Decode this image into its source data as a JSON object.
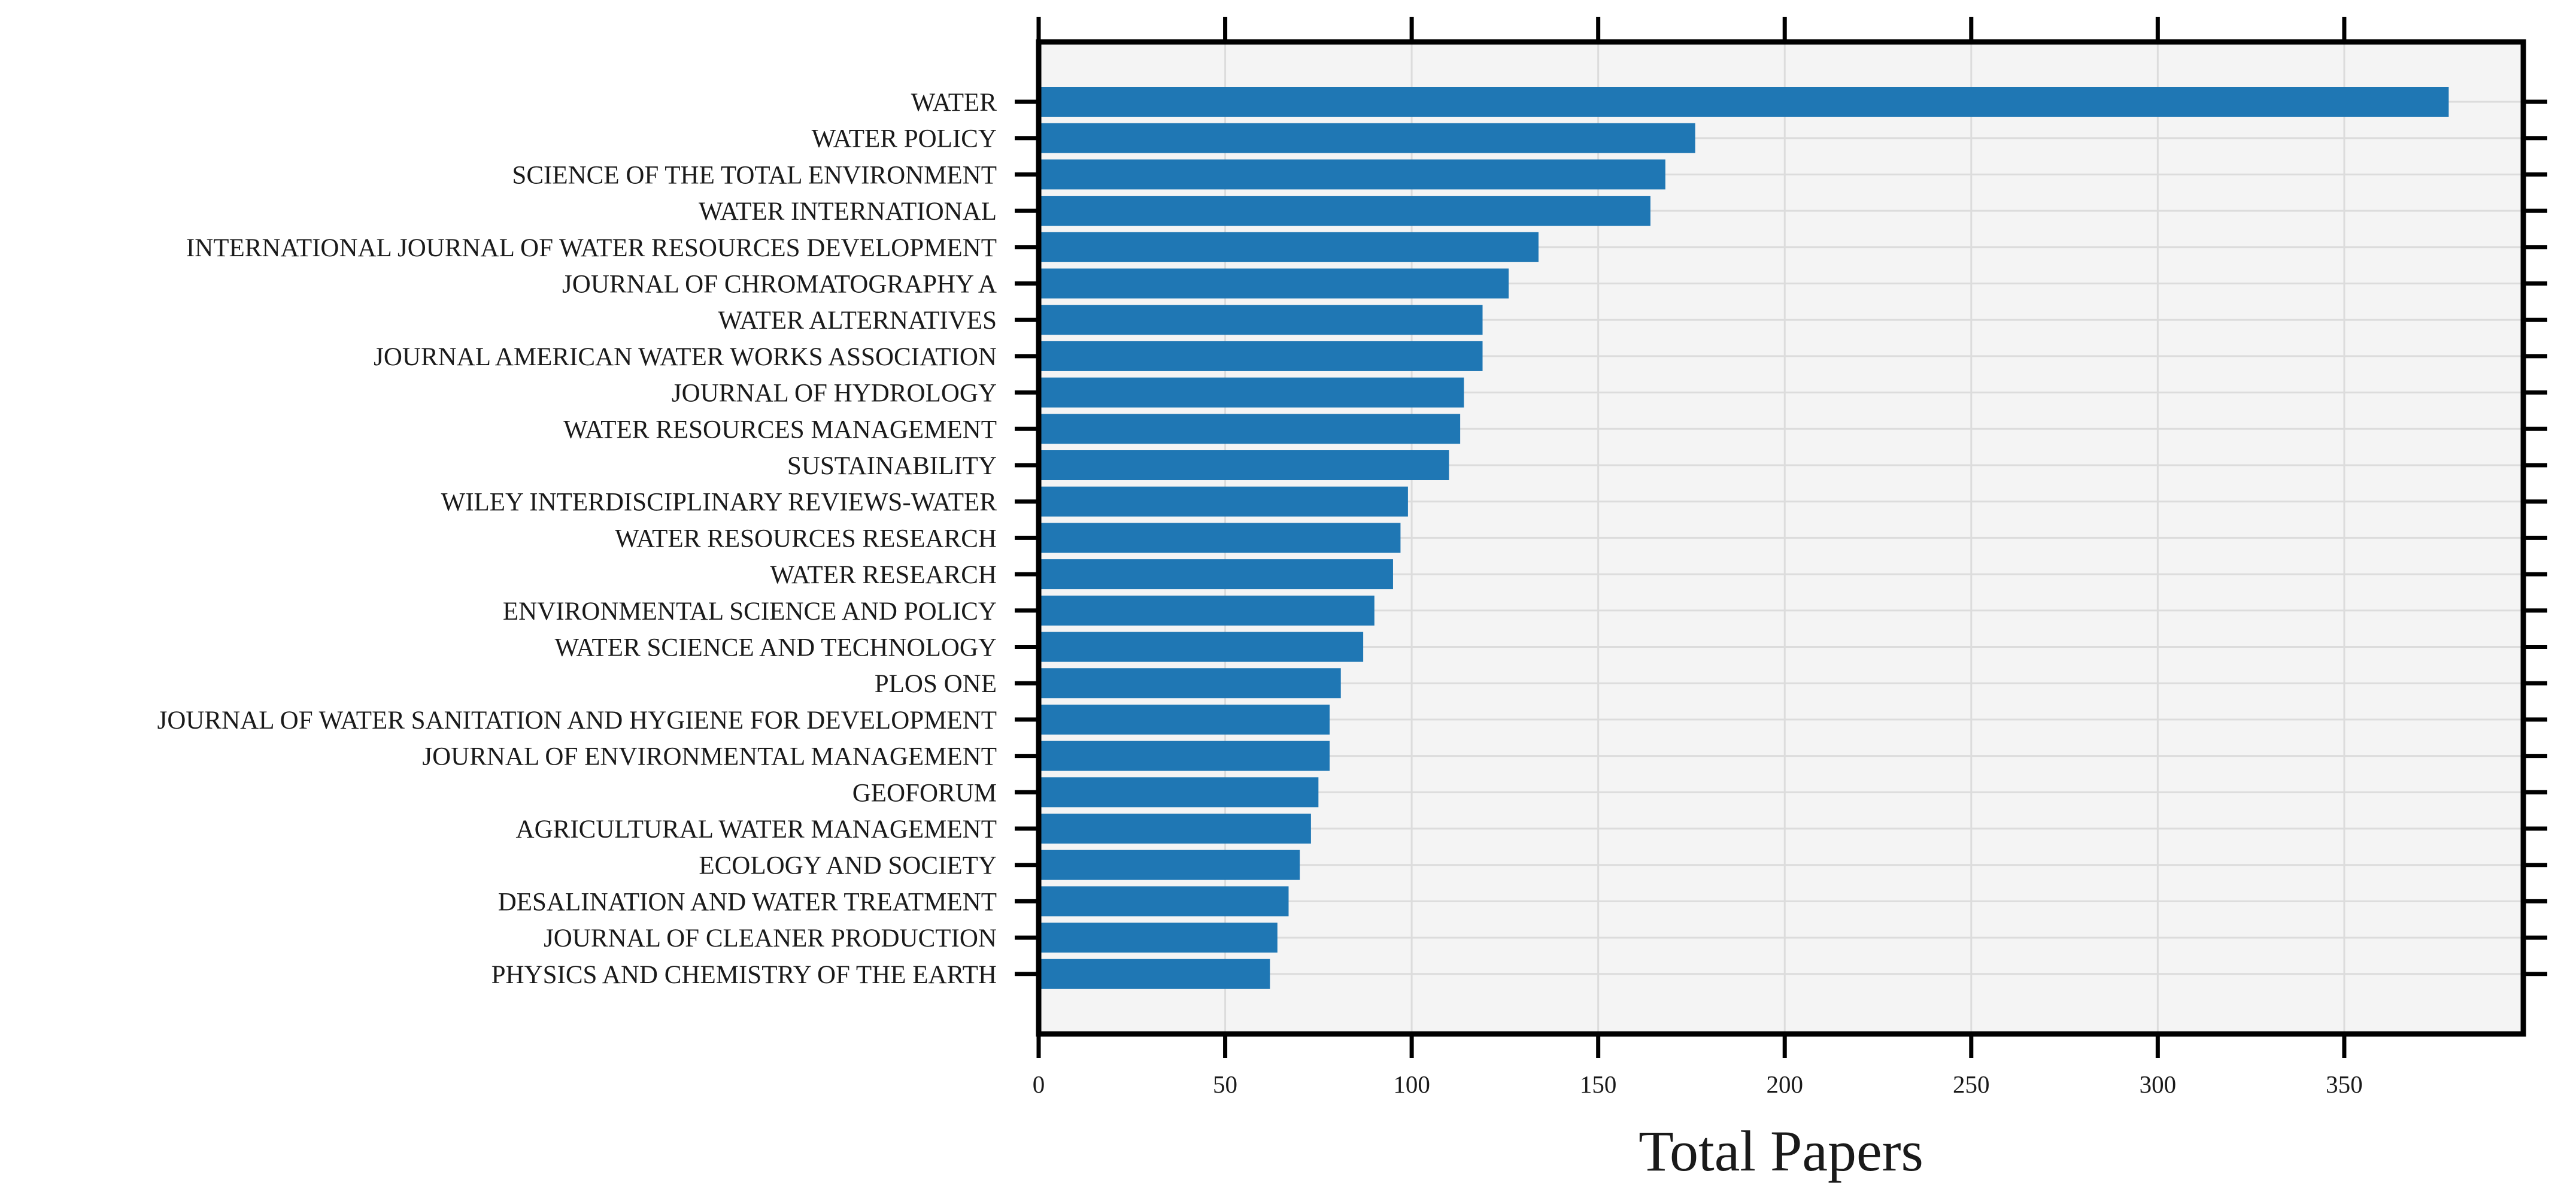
{
  "chart_data": {
    "type": "bar",
    "orientation": "horizontal",
    "xlabel": "Total Papers",
    "ylabel": "",
    "title": "",
    "xlim": [
      0,
      398
    ],
    "xticks": [
      0,
      50,
      100,
      150,
      200,
      250,
      300,
      350
    ],
    "grid": true,
    "colors": {
      "bar": "#1f77b4",
      "plot_background": "#f4f4f4",
      "grid": "#dcdcdc",
      "axis": "#000000"
    },
    "categories": [
      "WATER",
      "WATER POLICY",
      "SCIENCE OF THE TOTAL ENVIRONMENT",
      "WATER INTERNATIONAL",
      "INTERNATIONAL JOURNAL OF WATER RESOURCES DEVELOPMENT",
      "JOURNAL OF CHROMATOGRAPHY A",
      "WATER ALTERNATIVES",
      "JOURNAL AMERICAN WATER WORKS ASSOCIATION",
      "JOURNAL OF HYDROLOGY",
      "WATER RESOURCES MANAGEMENT",
      "SUSTAINABILITY",
      "WILEY INTERDISCIPLINARY REVIEWS-WATER",
      "WATER RESOURCES RESEARCH",
      "WATER RESEARCH",
      "ENVIRONMENTAL SCIENCE AND POLICY",
      "WATER SCIENCE AND TECHNOLOGY",
      "PLOS ONE",
      "JOURNAL OF WATER SANITATION AND HYGIENE FOR DEVELOPMENT",
      "JOURNAL OF ENVIRONMENTAL MANAGEMENT",
      "GEOFORUM",
      "AGRICULTURAL WATER MANAGEMENT",
      "ECOLOGY AND SOCIETY",
      "DESALINATION AND WATER TREATMENT",
      "JOURNAL OF CLEANER PRODUCTION",
      "PHYSICS AND CHEMISTRY OF THE EARTH"
    ],
    "values": [
      378,
      176,
      168,
      164,
      134,
      126,
      119,
      119,
      114,
      113,
      110,
      99,
      97,
      95,
      90,
      87,
      81,
      78,
      78,
      75,
      73,
      70,
      67,
      64,
      62
    ]
  }
}
